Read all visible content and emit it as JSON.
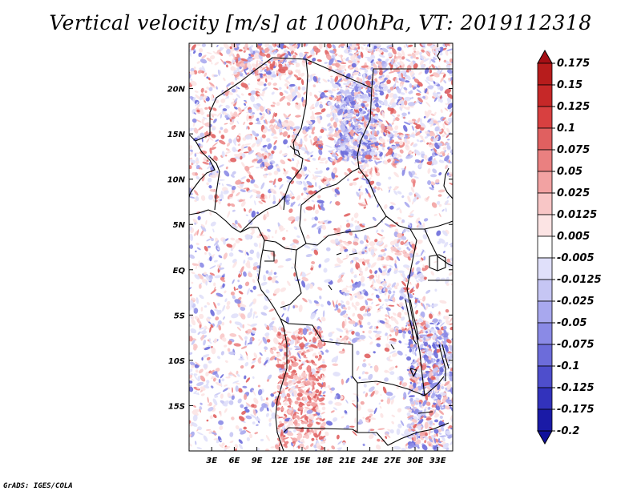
{
  "title": "Vertical velocity [m/s] at 1000hPa, VT: 2019112318",
  "footer": "GrADS: IGES/COLA",
  "map": {
    "lon_range": [
      0,
      35
    ],
    "lat_range": [
      -20,
      25
    ],
    "lat_ticks": [
      {
        "value": 20,
        "label": "20N"
      },
      {
        "value": 15,
        "label": "15N"
      },
      {
        "value": 10,
        "label": "10N"
      },
      {
        "value": 5,
        "label": "5N"
      },
      {
        "value": 0,
        "label": "EQ"
      },
      {
        "value": -5,
        "label": "5S"
      },
      {
        "value": -10,
        "label": "10S"
      },
      {
        "value": -15,
        "label": "15S"
      }
    ],
    "lon_ticks": [
      {
        "value": 3,
        "label": "3E"
      },
      {
        "value": 6,
        "label": "6E"
      },
      {
        "value": 9,
        "label": "9E"
      },
      {
        "value": 12,
        "label": "12E"
      },
      {
        "value": 15,
        "label": "15E"
      },
      {
        "value": 18,
        "label": "18E"
      },
      {
        "value": 21,
        "label": "21E"
      },
      {
        "value": 24,
        "label": "24E"
      },
      {
        "value": 27,
        "label": "27E"
      },
      {
        "value": 30,
        "label": "30E"
      },
      {
        "value": 33,
        "label": "33E"
      }
    ]
  },
  "colorbar": {
    "labels": [
      "0.175",
      "0.15",
      "0.125",
      "0.1",
      "0.075",
      "0.05",
      "0.025",
      "0.0125",
      "0.005",
      "-0.005",
      "-0.0125",
      "-0.025",
      "-0.05",
      "-0.075",
      "-0.1",
      "-0.125",
      "-0.175",
      "-0.2"
    ],
    "colors": [
      "#a50f15",
      "#b71c1c",
      "#c62828",
      "#d84040",
      "#e06060",
      "#ea8080",
      "#f2a2a2",
      "#f8c6c6",
      "#fce4e4",
      "#ffffff",
      "#e0e0fa",
      "#c6c6f4",
      "#a8a8ee",
      "#8a8ae6",
      "#6c6cda",
      "#4e4ecc",
      "#3232bc",
      "#1a1aa6",
      "#10109a"
    ]
  }
}
